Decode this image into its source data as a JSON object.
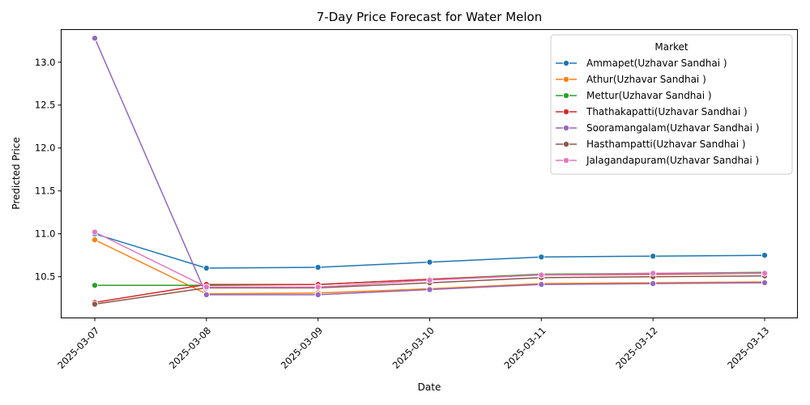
{
  "chart_data": {
    "type": "line",
    "title": "7-Day Price Forecast for Water Melon",
    "xlabel": "Date",
    "ylabel": "Predicted Price",
    "x": [
      "2025-03-07",
      "2025-03-08",
      "2025-03-09",
      "2025-03-10",
      "2025-03-11",
      "2025-03-12",
      "2025-03-13"
    ],
    "ylim": [
      10.02,
      13.38
    ],
    "yticks": [
      "10.5",
      "11.0",
      "11.5",
      "12.0",
      "12.5",
      "13.0"
    ],
    "grid": false,
    "legend": {
      "title": "Market",
      "placement": "top-right"
    },
    "series": [
      {
        "name": "Ammapet(Uzhavar Sandhai )",
        "color": "#1f77b4",
        "values": [
          11.0,
          10.6,
          10.61,
          10.67,
          10.73,
          10.74,
          10.75
        ]
      },
      {
        "name": "Athur(Uzhavar Sandhai )",
        "color": "#ff7f0e",
        "values": [
          10.93,
          10.3,
          10.31,
          10.36,
          10.42,
          10.43,
          10.44
        ]
      },
      {
        "name": "Mettur(Uzhavar Sandhai )",
        "color": "#2ca02c",
        "values": [
          10.4,
          10.4,
          10.41,
          10.47,
          10.53,
          10.54,
          10.55
        ]
      },
      {
        "name": "Thathakapatti(Uzhavar Sandhai )",
        "color": "#d62728",
        "values": [
          10.2,
          10.41,
          10.41,
          10.47,
          10.52,
          10.53,
          10.54
        ]
      },
      {
        "name": "Sooramangalam(Uzhavar Sandhai )",
        "color": "#9467bd",
        "values": [
          13.28,
          10.29,
          10.29,
          10.35,
          10.41,
          10.42,
          10.43
        ]
      },
      {
        "name": "Hasthampatti(Uzhavar Sandhai )",
        "color": "#8c564b",
        "values": [
          10.18,
          10.37,
          10.37,
          10.43,
          10.49,
          10.5,
          10.51
        ]
      },
      {
        "name": "Jalagandapuram(Uzhavar Sandhai )",
        "color": "#e377c2",
        "values": [
          11.02,
          10.38,
          10.38,
          10.46,
          10.52,
          10.54,
          10.54
        ]
      }
    ]
  }
}
